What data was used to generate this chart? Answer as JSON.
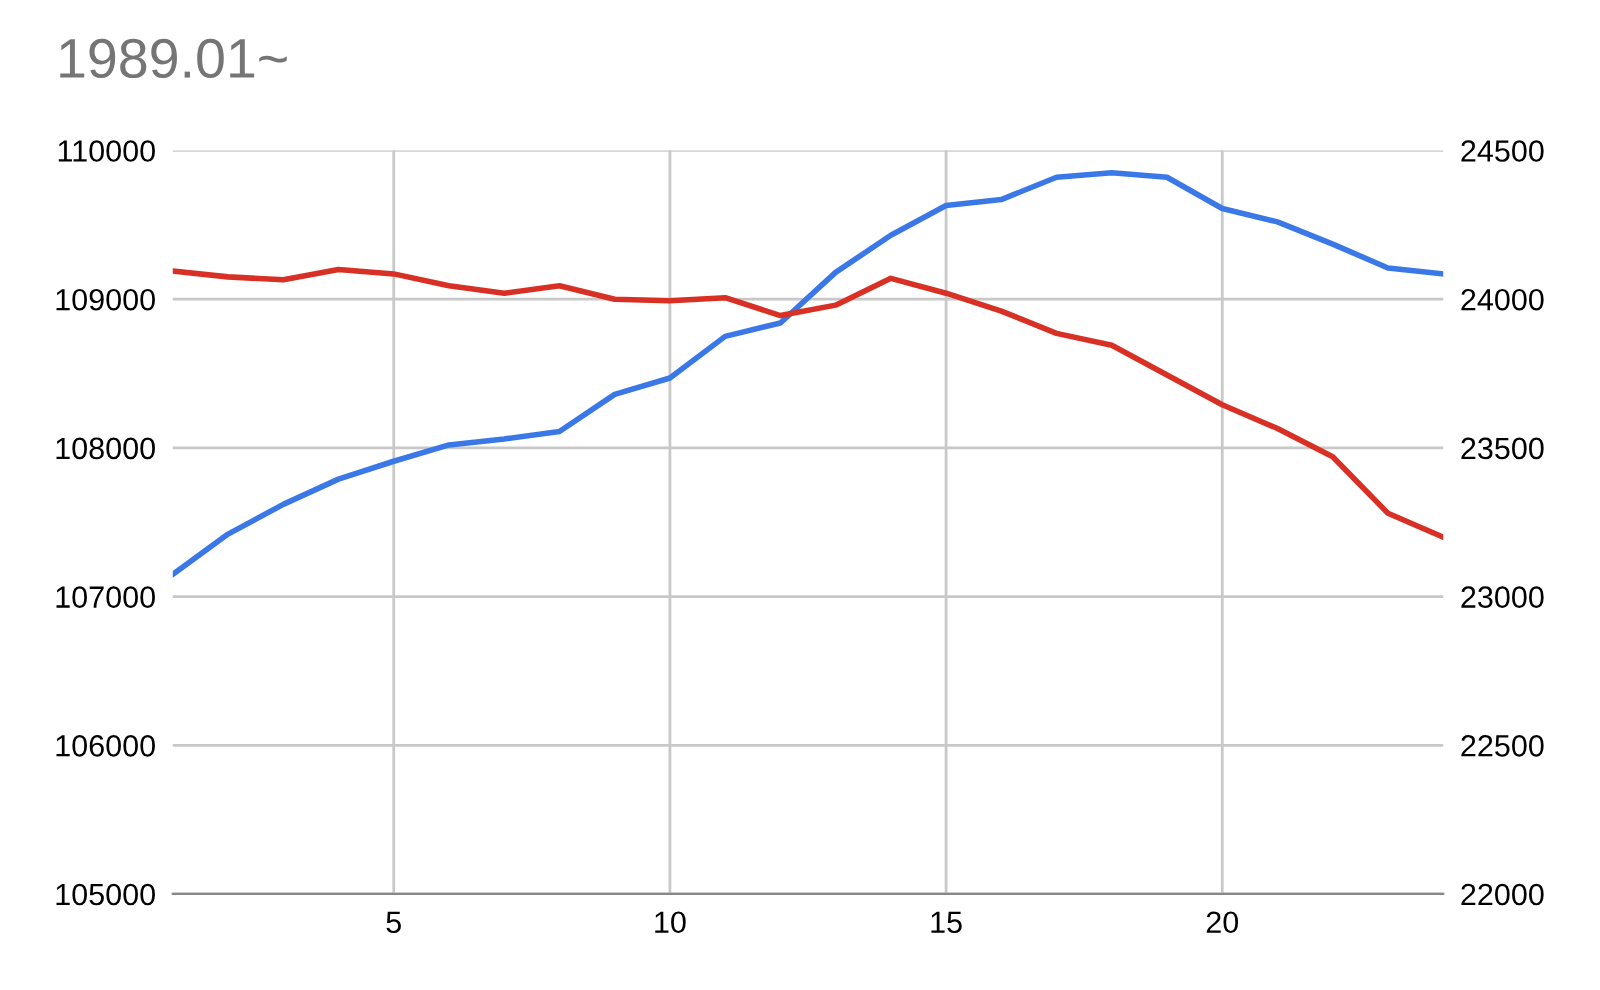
{
  "chart_data": {
    "type": "line",
    "title": "1989.01~",
    "x": [
      1,
      2,
      3,
      4,
      5,
      6,
      7,
      8,
      9,
      10,
      11,
      12,
      13,
      14,
      15,
      16,
      17,
      18,
      19,
      20,
      21,
      22,
      23,
      24
    ],
    "series": [
      {
        "color": "#3b78e7",
        "values": [
          107150,
          107420,
          107620,
          107790,
          107910,
          108020,
          108060,
          108110,
          108360,
          108470,
          108750,
          108840,
          109180,
          109430,
          109630,
          109670,
          109820,
          109850,
          109820,
          109610,
          109520,
          109370,
          109210,
          109170
        ]
      },
      {
        "color": "#d93025",
        "axis": "y2",
        "values": [
          24095,
          24075,
          24065,
          24100,
          24085,
          24045,
          24020,
          24045,
          24000,
          23995,
          24005,
          23945,
          23980,
          24070,
          24020,
          23960,
          23885,
          23845,
          23745,
          23645,
          23565,
          23470,
          23280,
          23200
        ]
      }
    ],
    "xlim": [
      1,
      24
    ],
    "xticks": [
      5,
      10,
      15,
      20
    ],
    "ylim": [
      105000,
      110000
    ],
    "yticks": [
      105000,
      106000,
      107000,
      108000,
      109000,
      110000
    ],
    "y2lim": [
      22000,
      24500
    ],
    "y2ticks": [
      22000,
      22500,
      23000,
      23500,
      24000,
      24500
    ],
    "grid": true
  }
}
